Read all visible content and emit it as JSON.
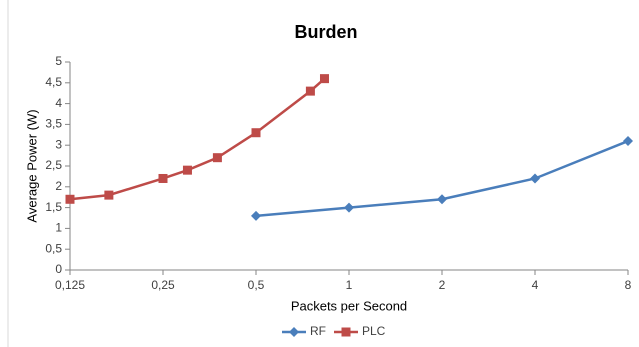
{
  "chart_data": {
    "type": "line",
    "title": "Burden",
    "xlabel": "Packets per Second",
    "ylabel": "Average Power (W)",
    "xscale": "log",
    "logbase": 2,
    "grid": false,
    "legend": "bottom",
    "xlim": [
      0.125,
      8
    ],
    "xticks": [
      {
        "value": 0.125,
        "label": "0,125"
      },
      {
        "value": 0.25,
        "label": "0,25"
      },
      {
        "value": 0.5,
        "label": "0,5"
      },
      1,
      2,
      4,
      8
    ],
    "ylim": [
      0,
      5
    ],
    "yticks": [
      0,
      {
        "value": 0.5,
        "label": "0,5"
      },
      1,
      {
        "value": 1.5,
        "label": "1,5"
      },
      2,
      {
        "value": 2.5,
        "label": "2,5"
      },
      3,
      {
        "value": 3.5,
        "label": "3,5"
      },
      4,
      {
        "value": 4.5,
        "label": "4,5"
      },
      5
    ],
    "series": [
      {
        "name": "RF",
        "color": "#4a7ebb",
        "marker": "diamond",
        "x": [
          0.5,
          1,
          2,
          4,
          8
        ],
        "values": [
          1.3,
          1.5,
          1.7,
          2.2,
          3.1
        ]
      },
      {
        "name": "PLC",
        "color": "#be4b48",
        "marker": "square",
        "x": [
          0.125,
          0.167,
          0.25,
          0.3,
          0.375,
          0.5,
          0.75,
          0.833
        ],
        "values": [
          1.7,
          1.8,
          2.2,
          2.4,
          2.7,
          3.3,
          4.3,
          4.6
        ]
      }
    ]
  }
}
